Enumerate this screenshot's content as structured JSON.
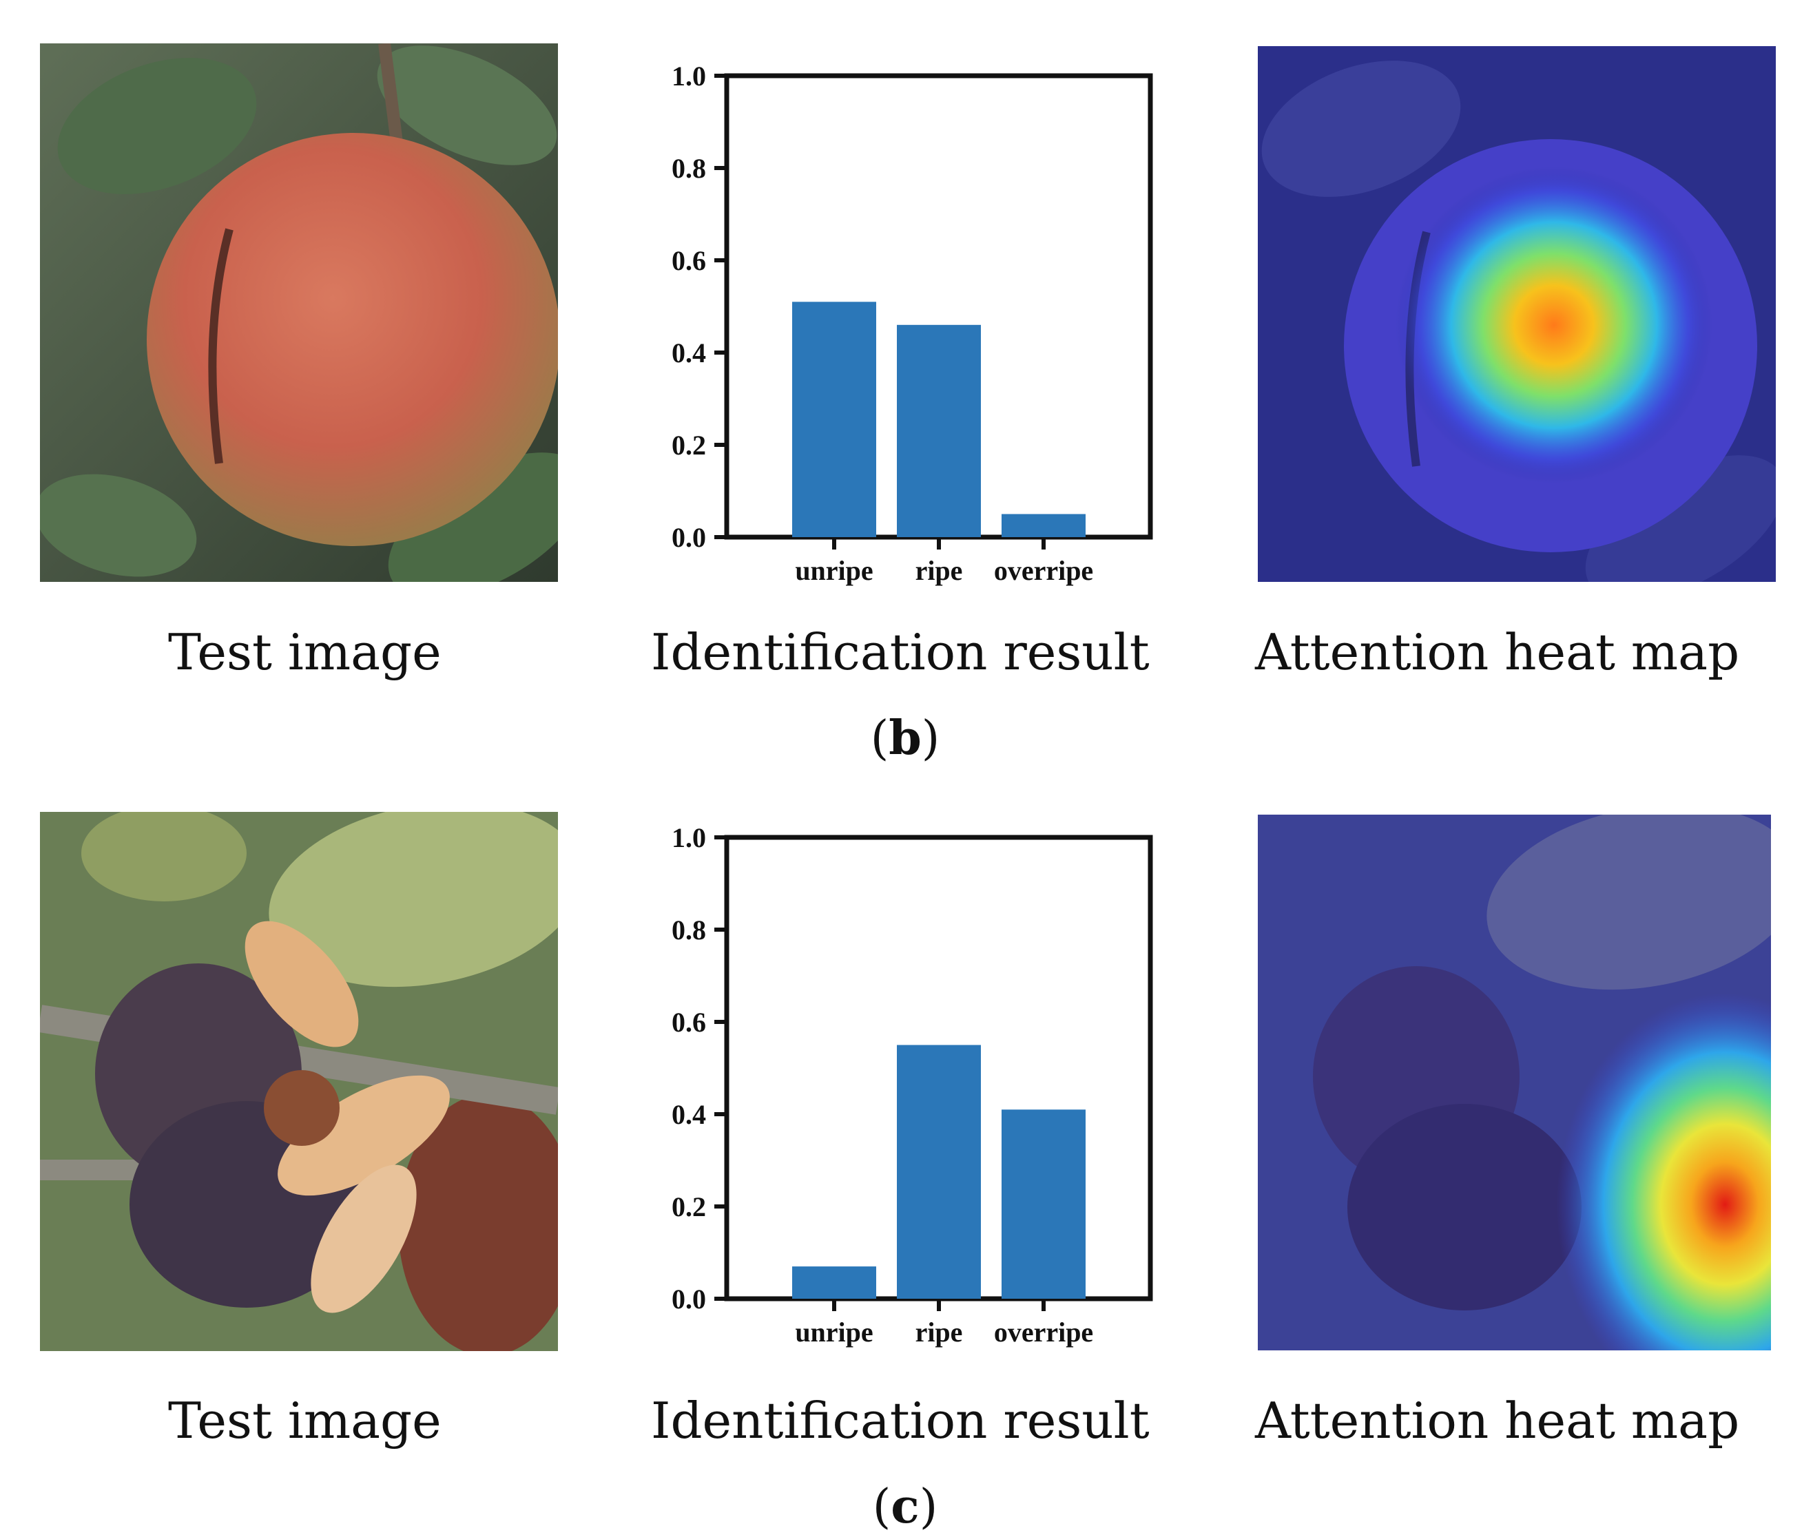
{
  "panels": [
    {
      "label": "b",
      "captions": {
        "test": "Test image",
        "result": "Identification result",
        "heat": "Attention heat map"
      },
      "colors": {
        "fruit": "#c9614d",
        "leaf": "#4f6b4a",
        "heat_peak": "#ff7a1a"
      },
      "icons": {
        "test_image": "ripe-camellia-fruit",
        "heat_map": "attention-heat-map-center"
      }
    },
    {
      "label": "c",
      "captions": {
        "test": "Test image",
        "result": "Identification result",
        "heat": "Attention heat map"
      },
      "colors": {
        "fruit": "#4a3c4c",
        "leaf": "#8f9e62",
        "heat_peak": "#e21b14"
      },
      "icons": {
        "test_image": "overripe-split-camellia-fruit",
        "heat_map": "attention-heat-map-right"
      }
    }
  ],
  "chart_data": [
    {
      "type": "bar",
      "categories": [
        "unripe",
        "ripe",
        "overripe"
      ],
      "values": [
        0.51,
        0.46,
        0.05
      ],
      "ylim": [
        0,
        1.0
      ],
      "yticks": [
        "0.0",
        "0.2",
        "0.4",
        "0.6",
        "0.8",
        "1.0"
      ],
      "bar_color": "#2b77b8",
      "grid": false,
      "title": "",
      "xlabel": "",
      "ylabel": ""
    },
    {
      "type": "bar",
      "categories": [
        "unripe",
        "ripe",
        "overripe"
      ],
      "values": [
        0.07,
        0.55,
        0.41
      ],
      "ylim": [
        0,
        1.0
      ],
      "yticks": [
        "0.0",
        "0.2",
        "0.4",
        "0.6",
        "0.8",
        "1.0"
      ],
      "bar_color": "#2b77b8",
      "grid": false,
      "title": "",
      "xlabel": "",
      "ylabel": ""
    }
  ]
}
